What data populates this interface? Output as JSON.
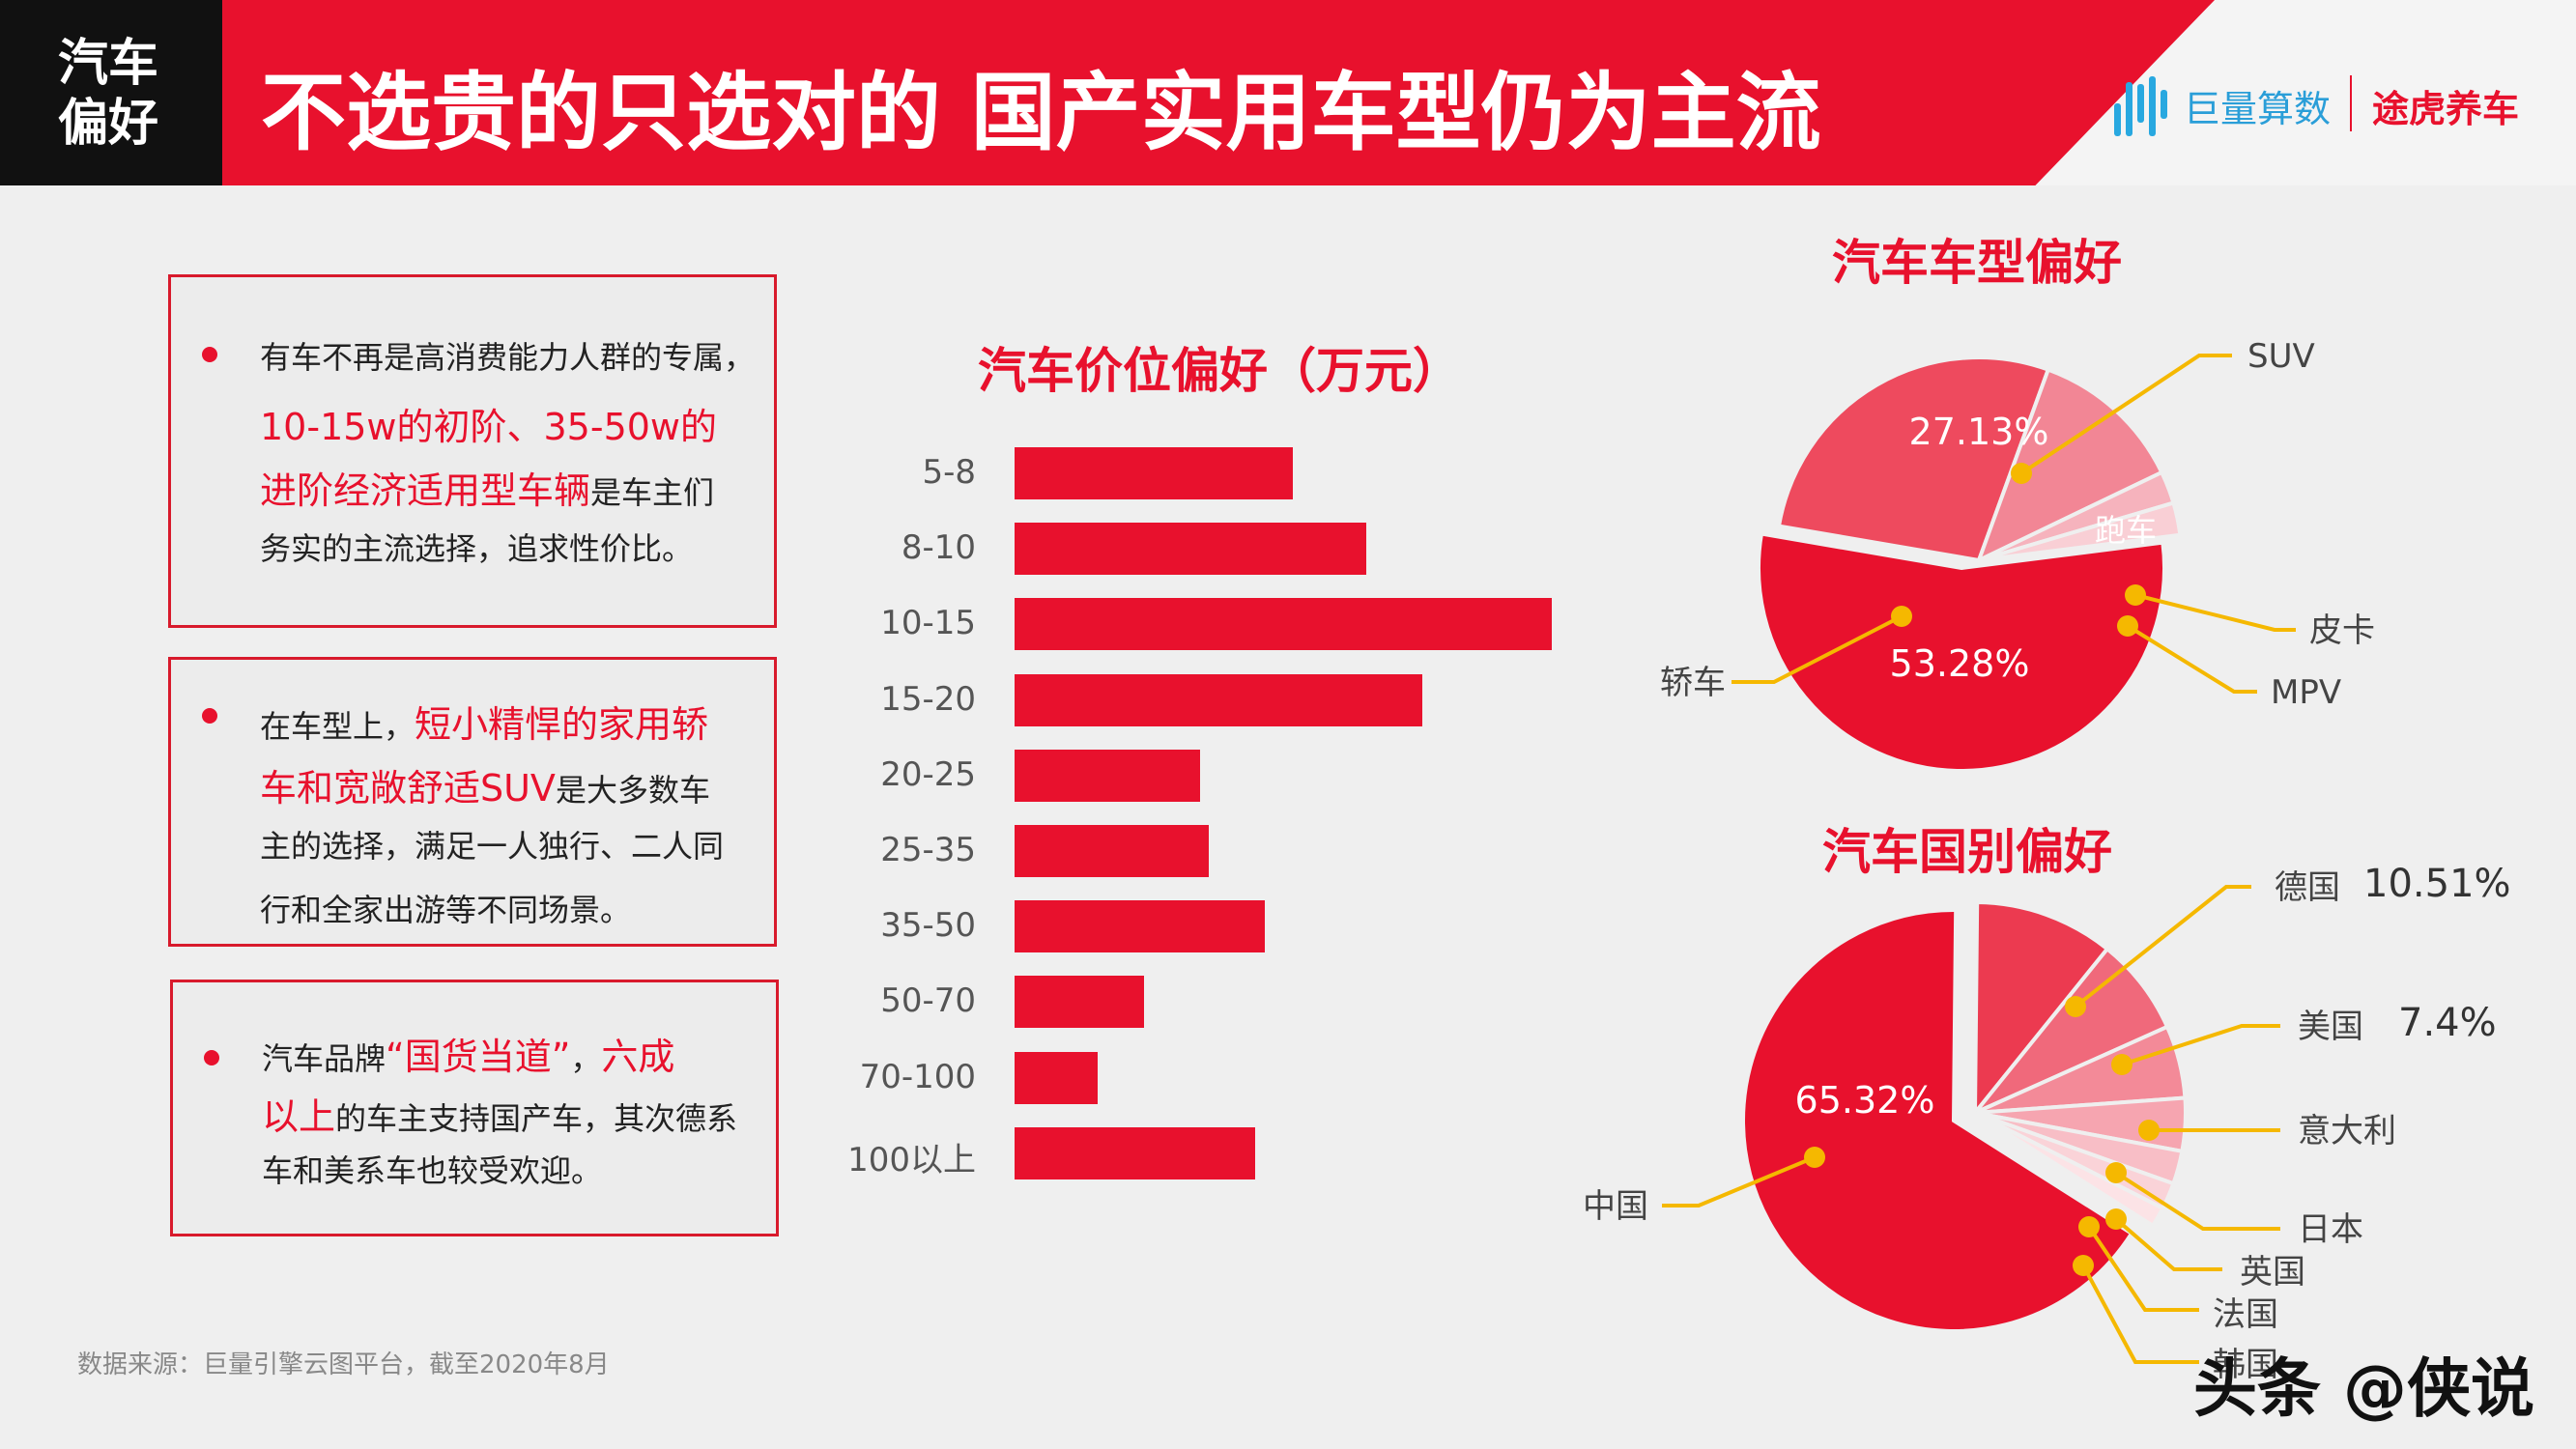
{
  "header": {
    "corner_line1": "汽车",
    "corner_line2": "偏好",
    "title": "不选贵的只选对的  国产实用车型仍为主流",
    "logo1_text": "巨量算数",
    "logo2_text": "途虎养车",
    "brand_color": "#e8112d"
  },
  "notes": [
    {
      "lines": [
        [
          {
            "t": "有车不再是高消费能力人群的专属，",
            "hl": false
          }
        ],
        [
          {
            "t": "10-15w的初阶、35-50w的",
            "hl": true
          }
        ],
        [
          {
            "t": "进阶经济适用型车辆",
            "hl": true
          },
          {
            "t": "是车主们",
            "hl": false
          }
        ],
        [
          {
            "t": "务实的主流选择，追求性价比。",
            "hl": false
          }
        ]
      ]
    },
    {
      "lines": [
        [
          {
            "t": "在车型上，",
            "hl": false
          },
          {
            "t": "短小精悍的家用轿",
            "hl": true
          }
        ],
        [
          {
            "t": "车和宽敞舒适SUV",
            "hl": true
          },
          {
            "t": "是大多数车",
            "hl": false
          }
        ],
        [
          {
            "t": "主的选择，满足一人独行、二人同",
            "hl": false
          }
        ],
        [
          {
            "t": "行和全家出游等不同场景。",
            "hl": false
          }
        ]
      ]
    },
    {
      "lines": [
        [
          {
            "t": "汽车品牌",
            "hl": false
          },
          {
            "t": "“国货当道”",
            "hl": true
          },
          {
            "t": "，",
            "hl": false
          },
          {
            "t": "六成",
            "hl": true
          }
        ],
        [
          {
            "t": "以上",
            "hl": true
          },
          {
            "t": "的车主支持国产车，其次德系",
            "hl": false
          }
        ],
        [
          {
            "t": "车和美系车也较受欢迎。",
            "hl": false
          }
        ]
      ]
    }
  ],
  "chart_data": [
    {
      "type": "bar",
      "orientation": "horizontal",
      "title": "汽车价位偏好（万元）",
      "categories": [
        "5-8",
        "8-10",
        "10-15",
        "15-20",
        "20-25",
        "25-35",
        "35-50",
        "50-70",
        "70-100",
        "100以上"
      ],
      "values": [
        30,
        38,
        58,
        44,
        20,
        21,
        27,
        14,
        9,
        26
      ],
      "xlim": [
        0,
        60
      ],
      "color": "#e8112d"
    },
    {
      "type": "pie",
      "title": "汽车车型偏好",
      "slices": [
        {
          "name": "轿车",
          "value": 53.28,
          "label": "53.28%",
          "color": "#e8112d"
        },
        {
          "name": "SUV",
          "value": 27.13,
          "label": "27.13%",
          "color": "#ee4a5e"
        },
        {
          "name": "跑车",
          "value": 12.0,
          "label": "",
          "color": "#f28695"
        },
        {
          "name": "皮卡",
          "value": 2.5,
          "label": "",
          "color": "#f6b3bd"
        },
        {
          "name": "MPV",
          "value": 2.5,
          "label": "",
          "color": "#f9cfd5"
        }
      ]
    },
    {
      "type": "pie",
      "title": "汽车国别偏好",
      "slices": [
        {
          "name": "中国",
          "value": 65.32,
          "label": "65.32%",
          "color": "#e8112d"
        },
        {
          "name": "德国",
          "value": 10.51,
          "label": "10.51%",
          "color": "#ec3a50"
        },
        {
          "name": "美国",
          "value": 7.4,
          "label": "7.4%",
          "color": "#f0697b"
        },
        {
          "name": "意大利",
          "value": 5.5,
          "label": "",
          "color": "#f38a98"
        },
        {
          "name": "日本",
          "value": 4.0,
          "label": "",
          "color": "#f6a5b0"
        },
        {
          "name": "英国",
          "value": 2.5,
          "label": "",
          "color": "#f8bec6"
        },
        {
          "name": "法国",
          "value": 2.0,
          "label": "",
          "color": "#fad3d8"
        },
        {
          "name": "韩国",
          "value": 1.5,
          "label": "",
          "color": "#fce3e6"
        }
      ]
    }
  ],
  "source": "数据来源：巨量引擎云图平台，截至2020年8月",
  "watermark": "头条 @侠说"
}
